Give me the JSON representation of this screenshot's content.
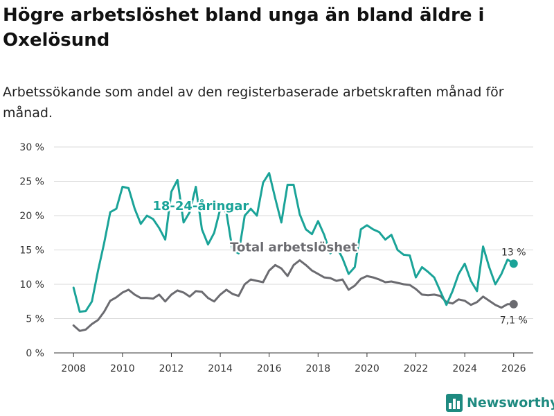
{
  "header": {
    "title": "Högre arbetslöshet bland unga än bland äldre i Oxelösund",
    "subtitle": "Arbetssökande som andel av den registerbaserade arbetskraften månad för månad."
  },
  "brand": {
    "name": "Newsworthy"
  },
  "colors": {
    "youth": "#1aa398",
    "total": "#6b6b70",
    "grid": "#d9d9d9",
    "brand": "#1e8a80"
  },
  "chart_data": {
    "type": "line",
    "title": "Högre arbetslöshet bland unga än bland äldre i Oxelösund",
    "subtitle": "Arbetssökande som andel av den registerbaserade arbetskraften månad för månad.",
    "xlabel": "",
    "ylabel": "",
    "xlim": [
      2007.2,
      2026.8
    ],
    "ylim": [
      0,
      30
    ],
    "grid": true,
    "x_ticks": [
      2008,
      2010,
      2012,
      2014,
      2016,
      2018,
      2020,
      2022,
      2024,
      2026
    ],
    "y_ticks": [
      0,
      5,
      10,
      15,
      20,
      25,
      30
    ],
    "y_tick_labels": [
      "0 %",
      "5 %",
      "10 %",
      "15 %",
      "20 %",
      "25 %",
      "30 %"
    ],
    "series": [
      {
        "name": "Total arbetslöshet",
        "label": "Total arbetslöshet",
        "end_label": "7,1 %",
        "points": [
          [
            2008.0,
            4.0
          ],
          [
            2008.25,
            3.2
          ],
          [
            2008.5,
            3.4
          ],
          [
            2008.75,
            4.2
          ],
          [
            2009.0,
            4.8
          ],
          [
            2009.25,
            6.0
          ],
          [
            2009.5,
            7.6
          ],
          [
            2009.75,
            8.1
          ],
          [
            2010.0,
            8.8
          ],
          [
            2010.25,
            9.2
          ],
          [
            2010.5,
            8.5
          ],
          [
            2010.75,
            8.0
          ],
          [
            2011.0,
            8.0
          ],
          [
            2011.25,
            7.9
          ],
          [
            2011.5,
            8.5
          ],
          [
            2011.75,
            7.5
          ],
          [
            2012.0,
            8.5
          ],
          [
            2012.25,
            9.1
          ],
          [
            2012.5,
            8.8
          ],
          [
            2012.75,
            8.2
          ],
          [
            2013.0,
            9.0
          ],
          [
            2013.25,
            8.9
          ],
          [
            2013.5,
            8.0
          ],
          [
            2013.75,
            7.5
          ],
          [
            2014.0,
            8.5
          ],
          [
            2014.25,
            9.2
          ],
          [
            2014.5,
            8.6
          ],
          [
            2014.75,
            8.3
          ],
          [
            2015.0,
            10.0
          ],
          [
            2015.25,
            10.7
          ],
          [
            2015.5,
            10.5
          ],
          [
            2015.75,
            10.3
          ],
          [
            2016.0,
            12.0
          ],
          [
            2016.25,
            12.8
          ],
          [
            2016.5,
            12.3
          ],
          [
            2016.75,
            11.2
          ],
          [
            2017.0,
            12.8
          ],
          [
            2017.25,
            13.5
          ],
          [
            2017.5,
            12.8
          ],
          [
            2017.75,
            12.0
          ],
          [
            2018.0,
            11.5
          ],
          [
            2018.25,
            11.0
          ],
          [
            2018.5,
            10.9
          ],
          [
            2018.75,
            10.5
          ],
          [
            2019.0,
            10.7
          ],
          [
            2019.25,
            9.2
          ],
          [
            2019.5,
            9.8
          ],
          [
            2019.75,
            10.8
          ],
          [
            2020.0,
            11.2
          ],
          [
            2020.25,
            11.0
          ],
          [
            2020.5,
            10.7
          ],
          [
            2020.75,
            10.3
          ],
          [
            2021.0,
            10.4
          ],
          [
            2021.25,
            10.2
          ],
          [
            2021.5,
            10.0
          ],
          [
            2021.75,
            9.9
          ],
          [
            2022.0,
            9.3
          ],
          [
            2022.25,
            8.5
          ],
          [
            2022.5,
            8.4
          ],
          [
            2022.75,
            8.5
          ],
          [
            2023.0,
            8.3
          ],
          [
            2023.25,
            7.4
          ],
          [
            2023.5,
            7.2
          ],
          [
            2023.75,
            7.8
          ],
          [
            2024.0,
            7.6
          ],
          [
            2024.25,
            7.0
          ],
          [
            2024.5,
            7.4
          ],
          [
            2024.75,
            8.2
          ],
          [
            2025.0,
            7.6
          ],
          [
            2025.25,
            7.0
          ],
          [
            2025.5,
            6.6
          ],
          [
            2025.75,
            7.1
          ],
          [
            2026.0,
            7.1
          ]
        ]
      },
      {
        "name": "18-24-åringar",
        "label": "18-24-åringar",
        "end_label": "13 %",
        "points": [
          [
            2008.0,
            9.5
          ],
          [
            2008.25,
            6.0
          ],
          [
            2008.5,
            6.1
          ],
          [
            2008.75,
            7.5
          ],
          [
            2009.0,
            12.0
          ],
          [
            2009.25,
            16.0
          ],
          [
            2009.5,
            20.5
          ],
          [
            2009.75,
            21.0
          ],
          [
            2010.0,
            24.2
          ],
          [
            2010.25,
            24.0
          ],
          [
            2010.5,
            21.0
          ],
          [
            2010.75,
            18.8
          ],
          [
            2011.0,
            20.0
          ],
          [
            2011.25,
            19.5
          ],
          [
            2011.5,
            18.2
          ],
          [
            2011.75,
            16.5
          ],
          [
            2012.0,
            23.5
          ],
          [
            2012.25,
            25.2
          ],
          [
            2012.5,
            19.0
          ],
          [
            2012.75,
            20.5
          ],
          [
            2013.0,
            24.2
          ],
          [
            2013.25,
            18.0
          ],
          [
            2013.5,
            15.8
          ],
          [
            2013.75,
            17.5
          ],
          [
            2014.0,
            21.0
          ],
          [
            2014.25,
            20.5
          ],
          [
            2014.5,
            15.0
          ],
          [
            2014.75,
            14.5
          ],
          [
            2015.0,
            20.0
          ],
          [
            2015.25,
            21.0
          ],
          [
            2015.5,
            20.0
          ],
          [
            2015.75,
            24.8
          ],
          [
            2016.0,
            26.2
          ],
          [
            2016.25,
            22.5
          ],
          [
            2016.5,
            19.0
          ],
          [
            2016.75,
            24.5
          ],
          [
            2017.0,
            24.5
          ],
          [
            2017.25,
            20.2
          ],
          [
            2017.5,
            18.0
          ],
          [
            2017.75,
            17.3
          ],
          [
            2018.0,
            19.2
          ],
          [
            2018.25,
            17.2
          ],
          [
            2018.5,
            14.5
          ],
          [
            2018.75,
            15.5
          ],
          [
            2019.0,
            13.8
          ],
          [
            2019.25,
            11.5
          ],
          [
            2019.5,
            12.5
          ],
          [
            2019.75,
            18.0
          ],
          [
            2020.0,
            18.6
          ],
          [
            2020.25,
            18.0
          ],
          [
            2020.5,
            17.6
          ],
          [
            2020.75,
            16.5
          ],
          [
            2021.0,
            17.2
          ],
          [
            2021.25,
            15.0
          ],
          [
            2021.5,
            14.3
          ],
          [
            2021.75,
            14.2
          ],
          [
            2022.0,
            11.0
          ],
          [
            2022.25,
            12.5
          ],
          [
            2022.5,
            11.8
          ],
          [
            2022.75,
            11.0
          ],
          [
            2023.0,
            9.0
          ],
          [
            2023.25,
            7.0
          ],
          [
            2023.5,
            9.0
          ],
          [
            2023.75,
            11.5
          ],
          [
            2024.0,
            13.0
          ],
          [
            2024.25,
            10.5
          ],
          [
            2024.5,
            9.0
          ],
          [
            2024.75,
            15.5
          ],
          [
            2025.0,
            12.5
          ],
          [
            2025.25,
            10.0
          ],
          [
            2025.5,
            11.5
          ],
          [
            2025.75,
            13.6
          ],
          [
            2026.0,
            13.0
          ]
        ]
      }
    ]
  }
}
